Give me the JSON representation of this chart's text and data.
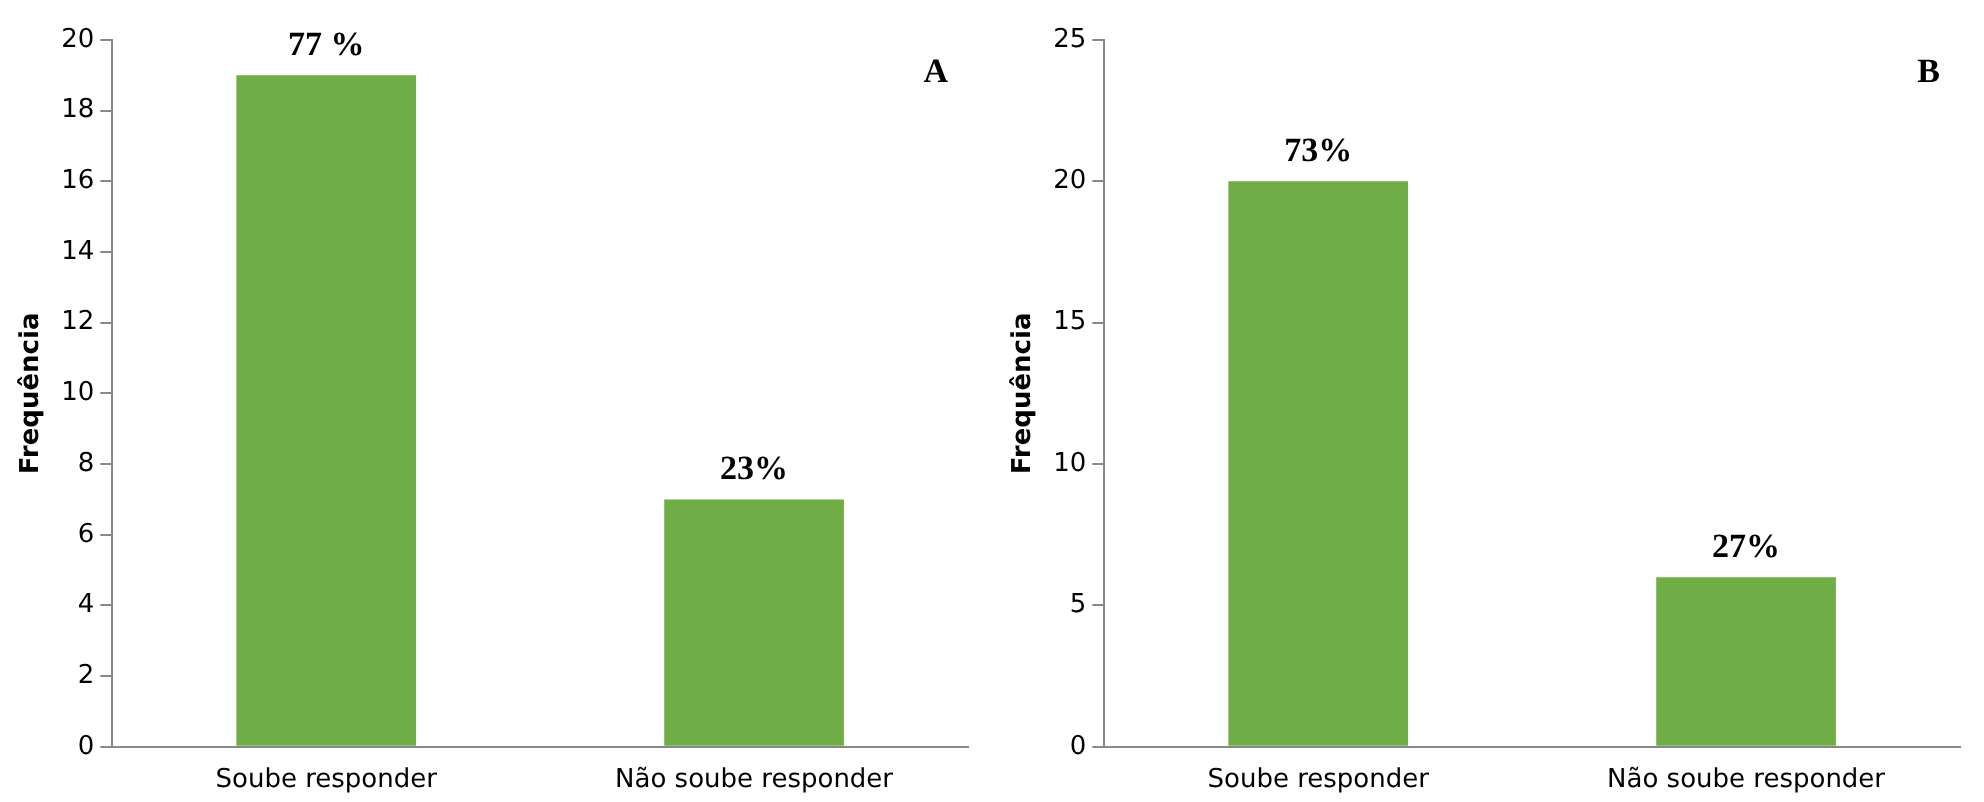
{
  "chart_data": [
    {
      "type": "bar",
      "ylabel": "Frequência",
      "annotations": [
        "A",
        {
          "text": "77 %",
          "x": "Soube responder",
          "y": 19
        },
        {
          "text": "23%",
          "x": "Não soube responder",
          "y": 7
        }
      ],
      "categories": [
        "Soube responder",
        "Não soube responder"
      ],
      "values": [
        19,
        7
      ],
      "color": "#70ad47",
      "ylim": [
        0,
        20
      ],
      "yticks": [
        0,
        2,
        4,
        6,
        8,
        10,
        12,
        14,
        16,
        18,
        20
      ],
      "grid": false,
      "legend": false
    },
    {
      "type": "bar",
      "ylabel": "Frequência",
      "annotations": [
        "B",
        {
          "text": "73%",
          "x": "Soube responder",
          "y": 20
        },
        {
          "text": "27%",
          "x": "Não soube responder",
          "y": 6
        }
      ],
      "categories": [
        "Soube responder",
        "Não soube responder"
      ],
      "values": [
        20,
        6
      ],
      "color": "#70ad47",
      "ylim": [
        0,
        25
      ],
      "yticks": [
        0,
        5,
        10,
        15,
        20,
        25
      ],
      "grid": false,
      "legend": false
    }
  ]
}
